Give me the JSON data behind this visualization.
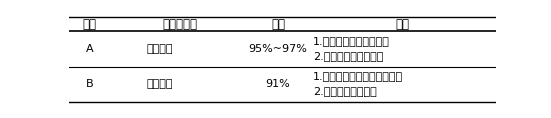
{
  "headers": [
    "序号",
    "不同萃取剂",
    "收率",
    "特点"
  ],
  "rows": [
    {
      "col0": "A",
      "col1": "二氯乙烷",
      "col2": "95%~97%",
      "col3_line1": "1.非极性，与水不混溶；",
      "col3_line2": "2.比重小，易于分层；"
    },
    {
      "col0": "B",
      "col1": "二氯甲烷",
      "col2": "91%",
      "col3_line1": "1.可以分层，但分层不明显；",
      "col3_line2": "2.萃取效果不明显；"
    }
  ],
  "header_fontsize": 8.5,
  "cell_fontsize": 8.0,
  "bg_color": "#ffffff",
  "text_color": "#000000",
  "line_color": "#000000"
}
